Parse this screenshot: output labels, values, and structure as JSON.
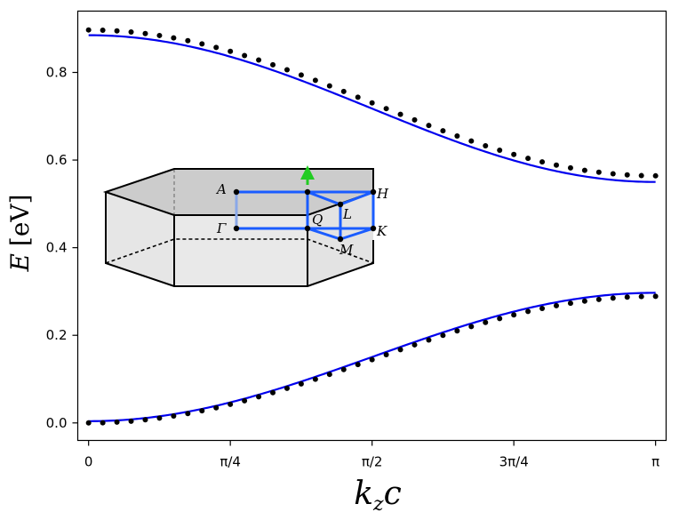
{
  "chart_data": {
    "type": "line",
    "xlabel": "k",
    "xlabel_sub": "z",
    "xlabel_suffix": "c",
    "ylabel": "E",
    "ylabel_unit": "[eV]",
    "xlim": [
      -0.06,
      3.2
    ],
    "ylim": [
      -0.04,
      0.94
    ],
    "grid": false,
    "x_ticks": [
      {
        "value": 0,
        "label": "0"
      },
      {
        "value": 0.7854,
        "label": "π/4"
      },
      {
        "value": 1.5708,
        "label": "π/2"
      },
      {
        "value": 2.3562,
        "label": "3π/4"
      },
      {
        "value": 3.1416,
        "label": "π"
      }
    ],
    "y_ticks": [
      {
        "value": 0.0,
        "label": "0.0"
      },
      {
        "value": 0.2,
        "label": "0.2"
      },
      {
        "value": 0.4,
        "label": "0.4"
      },
      {
        "value": 0.6,
        "label": "0.6"
      },
      {
        "value": 0.8,
        "label": "0.8"
      }
    ],
    "series": [
      {
        "kind": "line",
        "color": "#0000ee",
        "band": "upper",
        "model": {
          "center": 0.7175,
          "amplitude": 0.1675
        },
        "samples": 200
      },
      {
        "kind": "line",
        "color": "#0000ee",
        "band": "lower",
        "model": {
          "center": 0.1505,
          "amplitude": -0.1465
        },
        "samples": 200
      },
      {
        "kind": "dots",
        "color": "#000000",
        "band": "upper",
        "n_points": 41,
        "model": {
          "center": 0.7305,
          "amplitude": 0.1665
        }
      },
      {
        "kind": "dots",
        "color": "#000000",
        "band": "lower",
        "n_points": 41,
        "model": {
          "center": 0.1445,
          "amplitude": -0.1445
        }
      }
    ],
    "inset": {
      "labels": {
        "A": "A",
        "H": "H",
        "L": "L",
        "Q": "Q",
        "Gamma": "Γ",
        "K": "K",
        "M": "M"
      },
      "colors": {
        "path": "#1a5cff",
        "arrow": "#22cc22",
        "top_face": "#cccccc",
        "side_face": "#e6e6e6"
      }
    }
  }
}
